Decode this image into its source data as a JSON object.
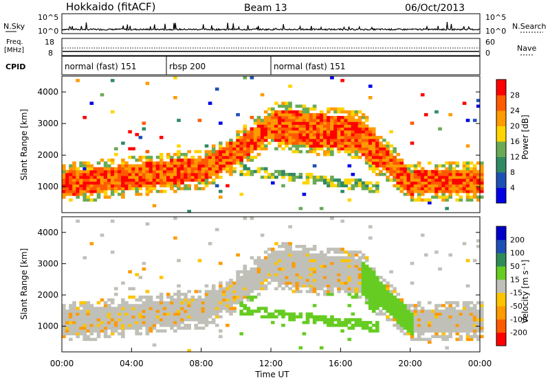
{
  "header": {
    "title": "Hokkaido (fitACF)",
    "beam": "Beam 13",
    "date": "06/Oct/2013"
  },
  "top_panels": {
    "nsky_label": "N.Sky",
    "nsearch_label": "N.Search",
    "nsky_ticks": [
      "10^5",
      "10^0"
    ],
    "freq_label_1": "Freq.",
    "freq_label_2": "[MHz]",
    "freq_ticks": [
      "18",
      "8"
    ],
    "nave_label": "Nave",
    "nave_ticks": [
      "60",
      "0"
    ],
    "cpid_label": "CPID",
    "cpid_segments": [
      {
        "label": "normal (fast) 151",
        "start_hr": 0,
        "end_hr": 6
      },
      {
        "label": "rbsp 200",
        "start_hr": 6,
        "end_hr": 12
      },
      {
        "label": "normal (fast) 151",
        "start_hr": 12,
        "end_hr": 24
      }
    ]
  },
  "x_axis": {
    "title": "Time UT",
    "ticks": [
      "00:00",
      "04:00",
      "08:00",
      "12:00",
      "16:00",
      "20:00",
      "00:00"
    ]
  },
  "colors": {
    "power": [
      "#0000e6",
      "#1e4fb4",
      "#2f8a63",
      "#6aaa55",
      "#ffd400",
      "#ff9a00",
      "#ff5a00",
      "#ff0000"
    ],
    "velocity": [
      "#ff0000",
      "#ff5a00",
      "#ff9a00",
      "#ffc400",
      "#c0c0b8",
      "#66cc22",
      "#2e8b57",
      "#1e4fb4",
      "#0000cc"
    ]
  },
  "chart_data": [
    {
      "type": "heatmap",
      "panel": "power",
      "ylabel": "Slant Range [km]",
      "xlim": [
        0,
        24
      ],
      "ylim": [
        180,
        4500
      ],
      "yticks": [
        "1000",
        "2000",
        "3000",
        "4000"
      ],
      "colorbar_label": "Power [dB]",
      "colorbar_ticks": [
        "4",
        "8",
        "12",
        "16",
        "20",
        "24",
        "28"
      ],
      "colorbar_range": [
        0,
        32
      ]
    },
    {
      "type": "heatmap",
      "panel": "velocity",
      "ylabel": "Slant Range [km]",
      "xlim": [
        0,
        24
      ],
      "ylim": [
        180,
        4500
      ],
      "yticks": [
        "1000",
        "2000",
        "3000",
        "4000"
      ],
      "colorbar_label": "Velocity [m s⁻¹]",
      "colorbar_ticks": [
        "200",
        "100",
        "50",
        "15",
        "-15",
        "-50",
        "-100",
        "-200"
      ]
    }
  ]
}
